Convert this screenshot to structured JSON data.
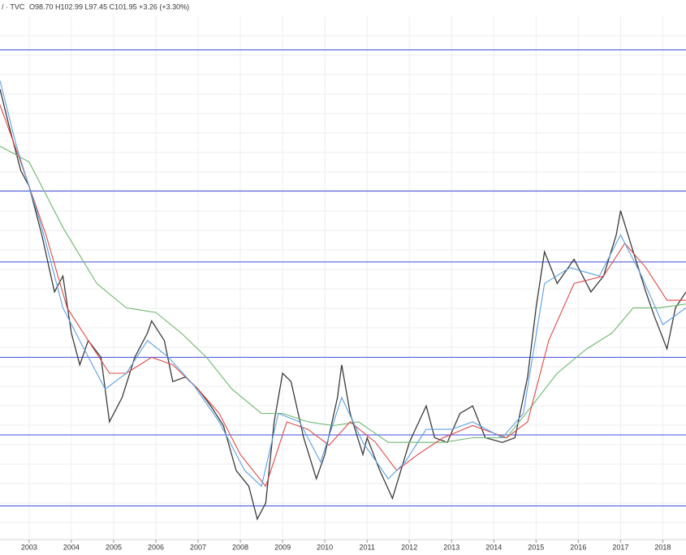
{
  "header": {
    "symbol": "/ · TVC",
    "ohlc": "O98.70 H102.99 L97.45 C101.95 +3.26 (+3.30%)"
  },
  "chart_data": {
    "type": "line",
    "xlim": [
      2002.31,
      2018.55
    ],
    "ylim": [
      70,
      126
    ],
    "xticks": [
      2003,
      2004,
      2005,
      2006,
      2007,
      2008,
      2009,
      2010,
      2011,
      2012,
      2013,
      2014,
      2015,
      2016,
      2017,
      2018
    ],
    "grid": true,
    "levels": [
      122.4,
      107.3,
      99.7,
      89.5,
      81.2,
      73.6
    ],
    "level_color": "#3f4cdb",
    "series": [
      {
        "color": "#3a3a3a",
        "x": [
          2002.31,
          2002.5,
          2002.8,
          2003.0,
          2003.3,
          2003.6,
          2003.8,
          2004.0,
          2004.2,
          2004.4,
          2004.7,
          2004.9,
          2005.2,
          2005.5,
          2005.8,
          2005.9,
          2006.2,
          2006.4,
          2006.7,
          2007.0,
          2007.3,
          2007.6,
          2007.9,
          2008.2,
          2008.4,
          2008.6,
          2008.8,
          2009.0,
          2009.2,
          2009.5,
          2009.8,
          2010.0,
          2010.3,
          2010.4,
          2010.6,
          2010.9,
          2011.0,
          2011.3,
          2011.6,
          2011.8,
          2012.0,
          2012.4,
          2012.6,
          2012.9,
          2013.2,
          2013.5,
          2013.8,
          2014.2,
          2014.5,
          2014.8,
          2015.0,
          2015.2,
          2015.5,
          2015.9,
          2016.3,
          2016.6,
          2016.9,
          2017.0,
          2017.3,
          2017.6,
          2017.8,
          2018.1,
          2018.3,
          2018.55
        ],
        "values": [
          118.2,
          114.7,
          109.5,
          107.8,
          102.6,
          96.5,
          98.2,
          92.1,
          88.7,
          91.3,
          89.5,
          82.6,
          85.2,
          89.5,
          92.1,
          93.4,
          91.3,
          86.9,
          87.4,
          86.1,
          84.3,
          82.2,
          77.4,
          75.7,
          72.2,
          73.9,
          82.6,
          87.8,
          86.9,
          80.9,
          76.5,
          79.1,
          85.2,
          88.7,
          83.5,
          79.1,
          80.9,
          77.4,
          74.4,
          77.4,
          80.4,
          84.3,
          80.9,
          80.4,
          83.5,
          84.3,
          80.9,
          80.4,
          80.9,
          87.4,
          94.8,
          100.8,
          97.4,
          100.0,
          96.5,
          98.2,
          102.6,
          105.2,
          100.8,
          96.5,
          93.9,
          90.4,
          94.8,
          96.5
        ]
      },
      {
        "color": "#6cb86c",
        "x": [
          2002.31,
          2003.0,
          2003.8,
          2004.6,
          2005.3,
          2006.0,
          2006.6,
          2007.2,
          2007.8,
          2008.5,
          2009.0,
          2009.6,
          2010.2,
          2010.8,
          2011.5,
          2012.0,
          2012.8,
          2013.5,
          2014.3,
          2014.9,
          2015.5,
          2016.2,
          2016.8,
          2017.3,
          2017.9,
          2018.55
        ],
        "values": [
          112.1,
          110.4,
          103.4,
          97.4,
          94.8,
          94.3,
          92.1,
          89.5,
          86.1,
          83.5,
          83.5,
          82.6,
          82.2,
          82.6,
          80.4,
          80.4,
          80.4,
          80.9,
          80.9,
          84.3,
          87.8,
          90.4,
          92.1,
          94.8,
          94.8,
          95.2
        ]
      },
      {
        "color": "#e04848",
        "x": [
          2002.31,
          2002.8,
          2003.4,
          2003.9,
          2004.4,
          2004.9,
          2005.3,
          2005.9,
          2006.4,
          2007.0,
          2007.5,
          2008.0,
          2008.6,
          2009.1,
          2009.6,
          2010.1,
          2010.6,
          2011.2,
          2011.7,
          2012.2,
          2012.8,
          2013.5,
          2014.3,
          2014.8,
          2015.3,
          2015.9,
          2016.6,
          2017.1,
          2017.6,
          2018.1,
          2018.55
        ],
        "values": [
          116.5,
          110.4,
          102.6,
          94.8,
          91.3,
          87.8,
          87.8,
          89.5,
          88.7,
          86.1,
          83.5,
          79.1,
          75.7,
          82.6,
          81.8,
          80.1,
          82.6,
          80.4,
          77.4,
          79.1,
          80.9,
          82.2,
          80.9,
          82.6,
          91.3,
          97.4,
          98.2,
          101.7,
          99.1,
          95.6,
          95.6
        ]
      },
      {
        "color": "#5aa0e6",
        "x": [
          2002.31,
          2002.7,
          2003.3,
          2003.8,
          2004.3,
          2004.8,
          2005.3,
          2005.8,
          2006.3,
          2006.9,
          2007.5,
          2008.1,
          2008.5,
          2008.9,
          2009.4,
          2009.9,
          2010.4,
          2010.9,
          2011.5,
          2011.9,
          2012.4,
          2013.0,
          2013.5,
          2014.2,
          2014.7,
          2015.2,
          2015.8,
          2016.5,
          2017.0,
          2017.5,
          2018.0,
          2018.55
        ],
        "values": [
          119.1,
          112.1,
          103.4,
          94.8,
          90.4,
          86.1,
          87.8,
          91.3,
          89.5,
          86.5,
          82.6,
          77.4,
          75.7,
          83.5,
          82.6,
          78.3,
          85.2,
          80.4,
          76.5,
          78.3,
          81.8,
          81.8,
          82.6,
          80.9,
          83.5,
          97.4,
          99.1,
          98.2,
          102.6,
          98.2,
          93.0,
          94.8
        ]
      }
    ]
  }
}
